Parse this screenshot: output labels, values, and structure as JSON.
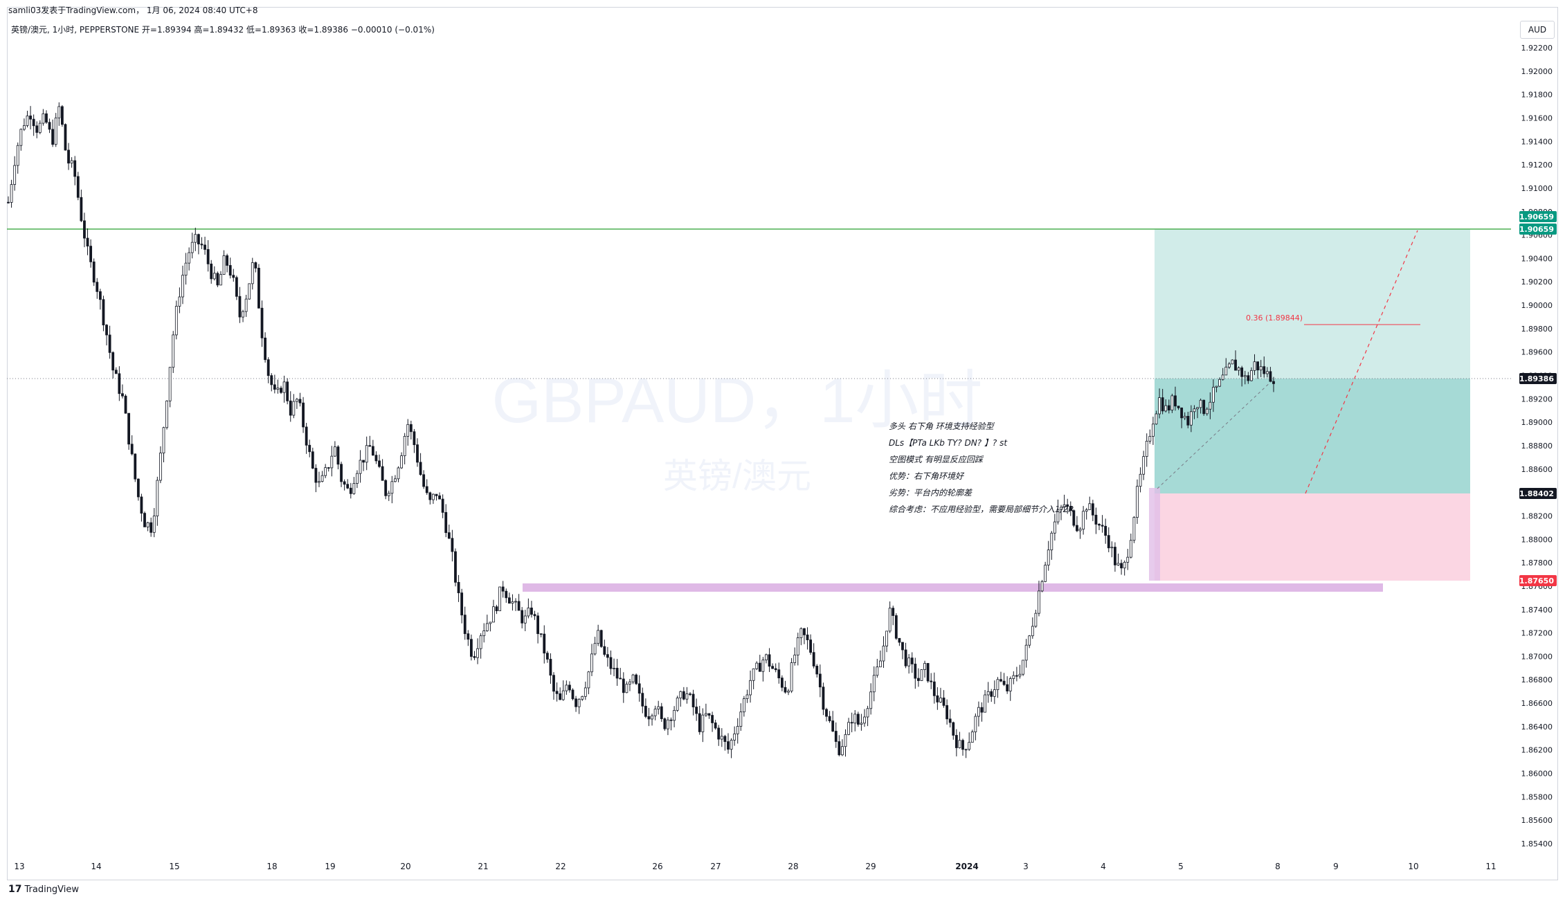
{
  "header": {
    "published": "samli03发表于TradingView.com， 1月 06, 2024 08:40 UTC+8",
    "symbol_line": "英镑/澳元, 1小时, PEPPERSTONE  开=1.89394  高=1.89432  低=1.89363  收=1.89386  −0.00010 (−0.01%)"
  },
  "currency": "AUD",
  "watermark": {
    "title": "GBPAUD，1小时",
    "subtitle": "英镑/澳元"
  },
  "branding": {
    "name": "TradingView",
    "mark": "17"
  },
  "notes": [
    "多头 右下角 环境支持经验型",
    "DLs【PTa LKb TY? DN? 】? st",
    "空图模式 有明显反应回踩",
    "优势：右下角环境好",
    "劣势：平台内的轮廓差",
    "综合考虑：不应用经验型，需要局部细节介入1/2R"
  ],
  "fib_label": "0.36 (1.89844)",
  "colors": {
    "up": "#131722",
    "down": "#131722",
    "resistance_line": "#4caf50",
    "target_zone": "#b2dfdb",
    "profit_zone": "#26a69a",
    "stop_zone": "#f8bbd0",
    "support_zone": "#ce93d8",
    "accent_green": "#089981",
    "accent_red": "#f23645",
    "price_tag_dark": "#131722"
  },
  "chart_data": {
    "type": "candlestick",
    "symbol": "GBPAUD",
    "timeframe": "1小时",
    "exchange": "PEPPERSTONE",
    "ohlc_last": {
      "open": 1.89394,
      "high": 1.89432,
      "low": 1.89363,
      "close": 1.89386,
      "change": -0.0001,
      "change_pct": -0.01
    },
    "ylim": [
      1.853,
      1.923
    ],
    "y_ticks": [
      "1.92200",
      "1.92000",
      "1.91800",
      "1.91600",
      "1.91400",
      "1.91200",
      "1.91000",
      "1.90800",
      "1.90600",
      "1.90400",
      "1.90200",
      "1.90000",
      "1.89800",
      "1.89600",
      "1.89400",
      "1.89200",
      "1.89000",
      "1.88800",
      "1.88600",
      "1.88400",
      "1.88200",
      "1.88000",
      "1.87800",
      "1.87600",
      "1.87400",
      "1.87200",
      "1.87000",
      "1.86800",
      "1.86600",
      "1.86400",
      "1.86200",
      "1.86000",
      "1.85800",
      "1.85600",
      "1.85400"
    ],
    "x_ticks": [
      "13",
      "14",
      "15",
      "18",
      "19",
      "20",
      "21",
      "22",
      "26",
      "27",
      "28",
      "29",
      "2024",
      "3",
      "4",
      "5",
      "8",
      "9",
      "10",
      "11"
    ],
    "price_tags": [
      {
        "label": "1.90659",
        "value": 1.90659,
        "color": "#089981"
      },
      {
        "label": "1.90659",
        "value": 1.90659,
        "color": "#089981"
      },
      {
        "label": "1.89386",
        "value": 1.89386,
        "color": "#131722"
      },
      {
        "label": "1.88402",
        "value": 1.88402,
        "color": "#131722"
      },
      {
        "label": "1.87650",
        "value": 1.8765,
        "color": "#f23645"
      }
    ],
    "levels": {
      "resistance": 1.90659,
      "current": 1.89386,
      "entry": 1.88402,
      "stop": 1.8765,
      "fib_036": 1.89844
    },
    "support_zone": [
      1.8753,
      1.8761
    ],
    "price_path": [
      [
        0.0,
        1.9088
      ],
      [
        0.3,
        1.913
      ],
      [
        0.6,
        1.9155
      ],
      [
        0.9,
        1.9165
      ],
      [
        1.2,
        1.915
      ],
      [
        1.5,
        1.916
      ],
      [
        1.8,
        1.914
      ],
      [
        2.1,
        1.917
      ],
      [
        2.4,
        1.9125
      ],
      [
        2.7,
        1.9115
      ],
      [
        3.0,
        1.9075
      ],
      [
        3.3,
        1.904
      ],
      [
        3.6,
        1.902
      ],
      [
        4.0,
        1.898
      ],
      [
        4.3,
        1.8945
      ],
      [
        4.7,
        1.892
      ],
      [
        5.0,
        1.888
      ],
      [
        5.3,
        1.884
      ],
      [
        5.6,
        1.8815
      ],
      [
        5.9,
        1.881
      ],
      [
        6.2,
        1.886
      ],
      [
        6.5,
        1.892
      ],
      [
        6.8,
        1.898
      ],
      [
        7.1,
        1.902
      ],
      [
        7.4,
        1.9045
      ],
      [
        7.7,
        1.9055
      ],
      [
        8.0,
        1.905
      ],
      [
        8.3,
        1.903
      ],
      [
        8.6,
        1.9015
      ],
      [
        8.9,
        1.904
      ],
      [
        9.2,
        1.9025
      ],
      [
        9.5,
        1.899
      ],
      [
        9.8,
        1.901
      ],
      [
        10.1,
        1.904
      ],
      [
        10.4,
        1.898
      ],
      [
        10.7,
        1.894
      ],
      [
        11.0,
        1.892
      ],
      [
        11.3,
        1.8935
      ],
      [
        11.6,
        1.891
      ],
      [
        11.9,
        1.892
      ],
      [
        12.2,
        1.889
      ],
      [
        12.5,
        1.886
      ],
      [
        12.8,
        1.8845
      ],
      [
        13.1,
        1.886
      ],
      [
        13.4,
        1.888
      ],
      [
        13.7,
        1.885
      ],
      [
        14.0,
        1.884
      ],
      [
        14.3,
        1.886
      ],
      [
        14.6,
        1.887
      ],
      [
        14.9,
        1.888
      ],
      [
        15.2,
        1.886
      ],
      [
        15.5,
        1.884
      ],
      [
        15.8,
        1.885
      ],
      [
        16.1,
        1.887
      ],
      [
        16.4,
        1.89
      ],
      [
        16.7,
        1.888
      ],
      [
        17.0,
        1.885
      ],
      [
        17.3,
        1.883
      ],
      [
        17.6,
        1.884
      ],
      [
        17.9,
        1.882
      ],
      [
        18.2,
        1.879
      ],
      [
        18.5,
        1.875
      ],
      [
        18.8,
        1.872
      ],
      [
        19.1,
        1.87
      ],
      [
        19.4,
        1.872
      ],
      [
        19.7,
        1.873
      ],
      [
        20.0,
        1.874
      ],
      [
        20.3,
        1.876
      ],
      [
        20.6,
        1.875
      ],
      [
        20.9,
        1.874
      ],
      [
        21.2,
        1.873
      ],
      [
        21.5,
        1.874
      ],
      [
        21.8,
        1.872
      ],
      [
        22.1,
        1.87
      ],
      [
        22.4,
        1.867
      ],
      [
        22.7,
        1.866
      ],
      [
        23.0,
        1.868
      ],
      [
        23.3,
        1.866
      ],
      [
        23.6,
        1.867
      ],
      [
        23.9,
        1.869
      ],
      [
        24.2,
        1.872
      ],
      [
        24.5,
        1.87
      ],
      [
        24.8,
        1.869
      ],
      [
        25.1,
        1.868
      ],
      [
        25.4,
        1.867
      ],
      [
        25.7,
        1.868
      ],
      [
        26.0,
        1.866
      ],
      [
        26.3,
        1.865
      ],
      [
        26.6,
        1.866
      ],
      [
        26.9,
        1.864
      ],
      [
        27.2,
        1.865
      ],
      [
        27.5,
        1.866
      ],
      [
        27.8,
        1.867
      ],
      [
        28.1,
        1.866
      ],
      [
        28.4,
        1.864
      ],
      [
        28.7,
        1.865
      ],
      [
        29.0,
        1.864
      ],
      [
        29.3,
        1.863
      ],
      [
        29.6,
        1.862
      ],
      [
        29.9,
        1.864
      ],
      [
        30.2,
        1.866
      ],
      [
        30.5,
        1.868
      ],
      [
        30.8,
        1.869
      ],
      [
        31.1,
        1.87
      ],
      [
        31.4,
        1.869
      ],
      [
        31.7,
        1.868
      ],
      [
        32.0,
        1.867
      ],
      [
        32.3,
        1.87
      ],
      [
        32.6,
        1.872
      ],
      [
        32.9,
        1.871
      ],
      [
        33.2,
        1.869
      ],
      [
        33.5,
        1.866
      ],
      [
        33.8,
        1.864
      ],
      [
        34.1,
        1.862
      ],
      [
        34.4,
        1.863
      ],
      [
        34.7,
        1.865
      ],
      [
        35.0,
        1.864
      ],
      [
        35.3,
        1.866
      ],
      [
        35.6,
        1.868
      ],
      [
        35.9,
        1.87
      ],
      [
        36.2,
        1.874
      ],
      [
        36.5,
        1.872
      ],
      [
        36.8,
        1.87
      ],
      [
        37.1,
        1.869
      ],
      [
        37.4,
        1.868
      ],
      [
        37.7,
        1.869
      ],
      [
        38.0,
        1.867
      ],
      [
        38.3,
        1.866
      ],
      [
        38.6,
        1.865
      ],
      [
        38.9,
        1.863
      ],
      [
        39.2,
        1.862
      ],
      [
        39.5,
        1.863
      ],
      [
        39.8,
        1.865
      ],
      [
        40.1,
        1.866
      ],
      [
        40.4,
        1.867
      ],
      [
        40.7,
        1.868
      ],
      [
        41.0,
        1.867
      ],
      [
        41.3,
        1.868
      ],
      [
        41.6,
        1.869
      ],
      [
        41.9,
        1.871
      ],
      [
        42.2,
        1.874
      ],
      [
        42.5,
        1.877
      ],
      [
        42.8,
        1.88
      ],
      [
        43.1,
        1.882
      ],
      [
        43.4,
        1.883
      ],
      [
        43.7,
        1.882
      ],
      [
        44.0,
        1.881
      ],
      [
        44.3,
        1.883
      ],
      [
        44.6,
        1.882
      ],
      [
        44.9,
        1.881
      ],
      [
        45.2,
        1.88
      ],
      [
        45.5,
        1.878
      ],
      [
        45.8,
        1.877
      ],
      [
        46.1,
        1.88
      ],
      [
        46.4,
        1.884
      ],
      [
        46.7,
        1.887
      ],
      [
        47.0,
        1.89
      ],
      [
        47.3,
        1.892
      ],
      [
        47.6,
        1.891
      ],
      [
        47.9,
        1.892
      ],
      [
        48.2,
        1.891
      ],
      [
        48.5,
        1.89
      ],
      [
        48.8,
        1.892
      ],
      [
        49.1,
        1.891
      ],
      [
        49.4,
        1.892
      ],
      [
        49.7,
        1.893
      ],
      [
        50.0,
        1.894
      ],
      [
        50.3,
        1.895
      ],
      [
        50.6,
        1.8945
      ],
      [
        50.9,
        1.8935
      ],
      [
        51.2,
        1.895
      ],
      [
        51.5,
        1.8945
      ],
      [
        51.8,
        1.894
      ],
      [
        52.0,
        1.89386
      ]
    ],
    "path_x_domain": [
      0,
      52
    ]
  }
}
